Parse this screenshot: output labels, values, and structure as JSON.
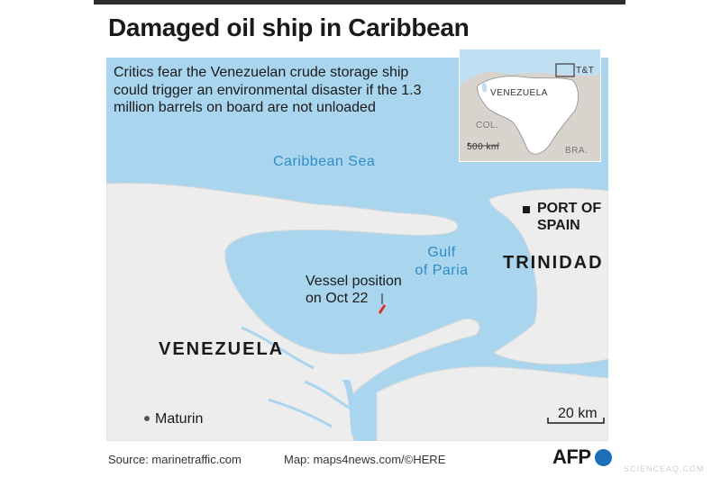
{
  "title": "Damaged oil ship in Caribbean",
  "description": "Critics fear the Venezuelan crude storage ship could trigger an environmental disaster if the 1.3 million barrels on board are not unloaded",
  "labels": {
    "sea": "Caribbean Sea",
    "gulf_line1": "Gulf",
    "gulf_line2": "of Paria",
    "trinidad": "TRINIDAD",
    "venezuela": "VENEZUELA",
    "port_line1": "PORT OF",
    "port_line2": "SPAIN",
    "city": "Maturin",
    "vessel_line1": "Vessel position",
    "vessel_line2": "on Oct 22",
    "scale": "20 km"
  },
  "inset": {
    "venezuela": "VENEZUELA",
    "tt": "T&T",
    "col": "COL.",
    "bra": "BRA.",
    "scale": "500 km"
  },
  "footer": {
    "source": "Source: marinetraffic.com",
    "map_credit": "Map: maps4news.com/©HERE",
    "logo": "AFP"
  },
  "watermark": "SCIENCEAQ.COM",
  "colors": {
    "water": "#a9d5ee",
    "land": "#ededed",
    "vessel": "#e2261c",
    "sea_text": "#2f8dc7"
  }
}
